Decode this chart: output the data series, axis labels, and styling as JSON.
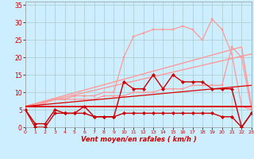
{
  "background_color": "#cceeff",
  "grid_color": "#aacccc",
  "xlabel": "Vent moyen/en rafales ( km/h )",
  "xlim": [
    0,
    23
  ],
  "ylim": [
    0,
    36
  ],
  "xticks": [
    0,
    1,
    2,
    3,
    4,
    5,
    6,
    7,
    8,
    9,
    10,
    11,
    12,
    13,
    14,
    15,
    16,
    17,
    18,
    19,
    20,
    21,
    22,
    23
  ],
  "yticks": [
    0,
    5,
    10,
    15,
    20,
    25,
    30,
    35
  ],
  "line_flat6": {
    "x": [
      0,
      23
    ],
    "y": [
      6,
      6
    ],
    "color": "#dd0000",
    "marker": null,
    "markersize": 0,
    "linewidth": 1.4,
    "zorder": 3
  },
  "line_slope_low": {
    "x": [
      0,
      23
    ],
    "y": [
      6,
      12
    ],
    "color": "#dd0000",
    "marker": null,
    "markersize": 0,
    "linewidth": 0.9,
    "zorder": 3
  },
  "line_pink_diag1": {
    "x": [
      0,
      23
    ],
    "y": [
      6,
      21
    ],
    "color": "#ff9999",
    "marker": null,
    "markersize": 0,
    "linewidth": 1.0,
    "zorder": 2
  },
  "line_pink_diag2": {
    "x": [
      0,
      22,
      23
    ],
    "y": [
      6,
      23,
      6
    ],
    "color": "#ff9999",
    "marker": null,
    "markersize": 0,
    "linewidth": 1.0,
    "zorder": 2
  },
  "line_pink_upper": {
    "x": [
      0,
      1,
      2,
      3,
      4,
      5,
      6,
      7,
      8,
      9,
      10,
      11,
      12,
      13,
      14,
      15,
      16,
      17,
      18,
      19,
      20,
      21,
      22,
      23
    ],
    "y": [
      6,
      6,
      7,
      8,
      8,
      9,
      9,
      9,
      10,
      10,
      20,
      26,
      27,
      28,
      28,
      28,
      29,
      28,
      25,
      31,
      28,
      21,
      6,
      5
    ],
    "color": "#ff9999",
    "marker": "s",
    "markersize": 2.0,
    "linewidth": 0.9,
    "zorder": 2
  },
  "line_pink_lower": {
    "x": [
      0,
      1,
      2,
      3,
      4,
      5,
      6,
      7,
      8,
      9,
      10,
      11,
      12,
      13,
      14,
      15,
      16,
      17,
      18,
      19,
      20,
      21,
      22,
      23
    ],
    "y": [
      6,
      6,
      7,
      8,
      8,
      8,
      8,
      8,
      9,
      9,
      9,
      10,
      10,
      10,
      11,
      11,
      11,
      12,
      12,
      12,
      12,
      23,
      20,
      5
    ],
    "color": "#ff9999",
    "marker": "s",
    "markersize": 2.0,
    "linewidth": 0.9,
    "zorder": 2
  },
  "line_dark_wiggly": {
    "x": [
      0,
      1,
      2,
      3,
      4,
      5,
      6,
      7,
      8,
      9,
      10,
      11,
      12,
      13,
      14,
      15,
      16,
      17,
      18,
      19,
      20,
      21,
      22,
      23
    ],
    "y": [
      5,
      1,
      1,
      5,
      4,
      4,
      6,
      3,
      3,
      3,
      13,
      11,
      11,
      15,
      11,
      15,
      13,
      13,
      13,
      11,
      11,
      11,
      0,
      4
    ],
    "color": "#cc0000",
    "marker": "D",
    "markersize": 2.2,
    "linewidth": 1.0,
    "zorder": 4
  },
  "line_dark_low": {
    "x": [
      0,
      1,
      2,
      3,
      4,
      5,
      6,
      7,
      8,
      9,
      10,
      11,
      12,
      13,
      14,
      15,
      16,
      17,
      18,
      19,
      20,
      21,
      22,
      23
    ],
    "y": [
      5,
      0,
      0,
      4,
      4,
      4,
      4,
      3,
      3,
      3,
      4,
      4,
      4,
      4,
      4,
      4,
      4,
      4,
      4,
      4,
      3,
      3,
      0,
      4
    ],
    "color": "#cc0000",
    "marker": "D",
    "markersize": 2.2,
    "linewidth": 1.0,
    "zorder": 4
  }
}
